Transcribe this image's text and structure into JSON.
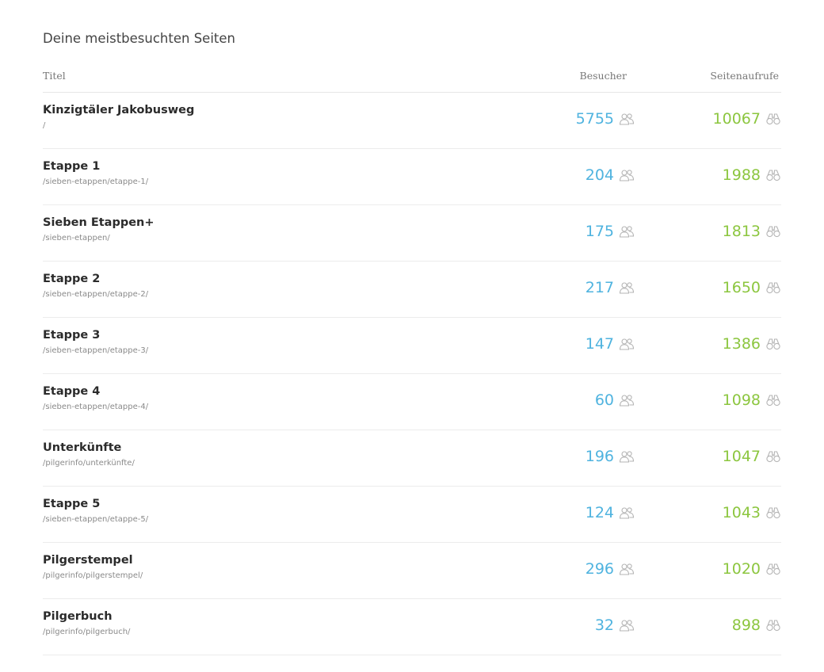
{
  "panel": {
    "title": "Deine meistbesuchten Seiten",
    "columns": {
      "title": "Titel",
      "visitors": "Besucher",
      "pageviews": "Seitenaufrufe"
    },
    "visitor_icon": "users-icon",
    "pageview_icon": "binoculars-icon",
    "colors": {
      "visitors": "#4fb3df",
      "pageviews": "#8cc63f"
    },
    "rows": [
      {
        "title": "Kinzigtäler Jakobusweg",
        "path": "/",
        "visitors": "5755",
        "pageviews": "10067"
      },
      {
        "title": "Etappe 1",
        "path": "/sieben-etappen/etappe-1/",
        "visitors": "204",
        "pageviews": "1988"
      },
      {
        "title": "Sieben Etappen+",
        "path": "/sieben-etappen/",
        "visitors": "175",
        "pageviews": "1813"
      },
      {
        "title": "Etappe 2",
        "path": "/sieben-etappen/etappe-2/",
        "visitors": "217",
        "pageviews": "1650"
      },
      {
        "title": "Etappe 3",
        "path": "/sieben-etappen/etappe-3/",
        "visitors": "147",
        "pageviews": "1386"
      },
      {
        "title": "Etappe 4",
        "path": "/sieben-etappen/etappe-4/",
        "visitors": "60",
        "pageviews": "1098"
      },
      {
        "title": "Unterkünfte",
        "path": "/pilgerinfo/unterkünfte/",
        "visitors": "196",
        "pageviews": "1047"
      },
      {
        "title": "Etappe 5",
        "path": "/sieben-etappen/etappe-5/",
        "visitors": "124",
        "pageviews": "1043"
      },
      {
        "title": "Pilgerstempel",
        "path": "/pilgerinfo/pilgerstempel/",
        "visitors": "296",
        "pageviews": "1020"
      },
      {
        "title": "Pilgerbuch",
        "path": "/pilgerinfo/pilgerbuch/",
        "visitors": "32",
        "pageviews": "898"
      }
    ]
  }
}
